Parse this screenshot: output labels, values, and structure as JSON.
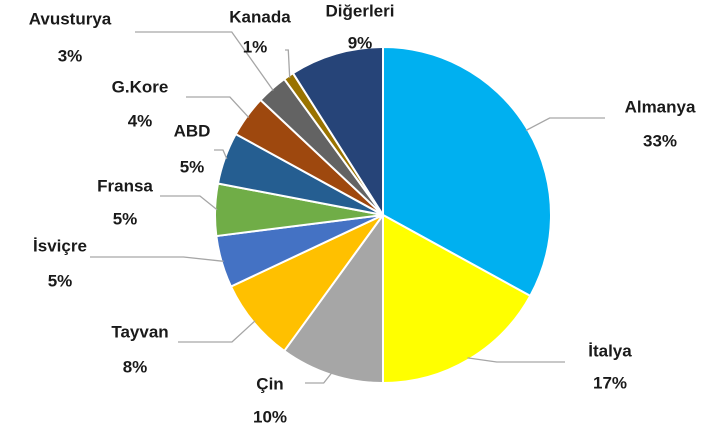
{
  "chart_data": {
    "type": "pie",
    "categories": [
      "Almanya",
      "İtalya",
      "Çin",
      "Tayvan",
      "İsviçre",
      "Fransa",
      "ABD",
      "G.Kore",
      "Avusturya",
      "Kanada",
      "Diğerleri"
    ],
    "values": [
      33,
      17,
      10,
      8,
      5,
      5,
      5,
      4,
      3,
      1,
      9
    ],
    "value_labels": [
      "33%",
      "17%",
      "10%",
      "8%",
      "5%",
      "5%",
      "5%",
      "4%",
      "3%",
      "1%",
      "9%"
    ],
    "colors": [
      "#00b0f0",
      "#ffff00",
      "#a6a6a6",
      "#ffc000",
      "#4472c4",
      "#70ad47",
      "#255e91",
      "#9e480e",
      "#636363",
      "#997300",
      "#264478"
    ]
  }
}
